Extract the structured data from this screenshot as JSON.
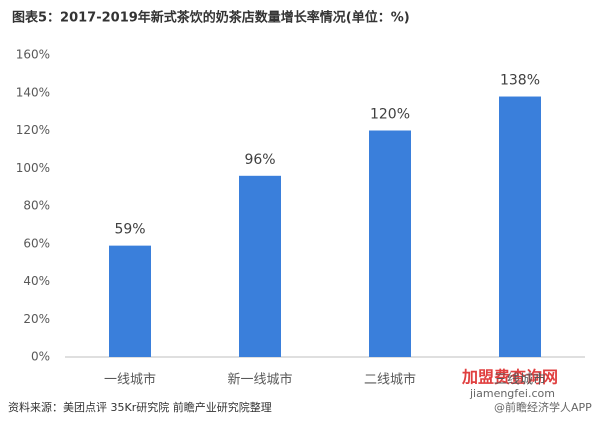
{
  "chart_data": {
    "type": "bar",
    "title": "图表5：2017-2019年新式茶饮的奶茶店数量增长率情况(单位：%)",
    "categories": [
      "一线城市",
      "新一线城市",
      "二线城市",
      "三线城市"
    ],
    "values": [
      59,
      96,
      120,
      138
    ],
    "value_labels": [
      "59%",
      "96%",
      "120%",
      "138%"
    ],
    "color": "#3a7fdb",
    "ylim": [
      0,
      160
    ],
    "yticks": [
      {
        "value": 0,
        "label": "0%"
      },
      {
        "value": 20,
        "label": "20%"
      },
      {
        "value": 40,
        "label": "40%"
      },
      {
        "value": 60,
        "label": "60%"
      },
      {
        "value": 80,
        "label": "80%"
      },
      {
        "value": 100,
        "label": "100%"
      },
      {
        "value": 120,
        "label": "120%"
      },
      {
        "value": 140,
        "label": "140%"
      },
      {
        "value": 160,
        "label": "160%"
      }
    ],
    "grid": false,
    "source": "资料来源：美团点评 35Kr研究院 前瞻产业研究院整理",
    "watermarks": [
      "加盟费查询网",
      "jiamengfei.com",
      "@前瞻经济学人APP"
    ]
  }
}
